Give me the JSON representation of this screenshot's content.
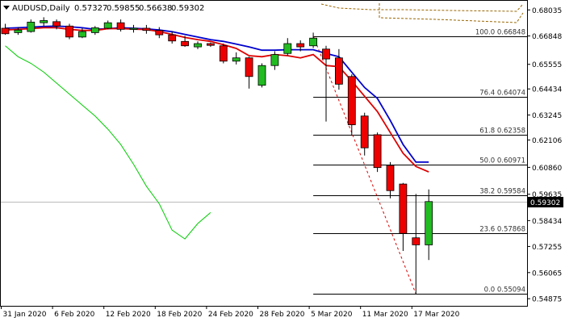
{
  "header": {
    "symbol_label": "AUDUSD,Daily",
    "ohlc_values": [
      "0.57327",
      "0.59855",
      "0.56638",
      "0.59302"
    ]
  },
  "colors": {
    "background": "#ffffff",
    "bull_candle": "#22bb22",
    "bear_candle": "#ee0000",
    "candle_outline": "#000000",
    "fast_ma": "#dd0000",
    "slow_ma": "#0000cc",
    "oscillator": "#00cc00",
    "fib_level": "#000000",
    "fib_trend": "#dd0000",
    "current_price_box": "#000000",
    "top_indicator": "#cc8800"
  },
  "chart_data": {
    "type": "candlestick",
    "symbol": "AUDUSD",
    "timeframe": "Daily",
    "y_axis_ticks": [
      "0.68035",
      "0.66848",
      "0.65555",
      "0.64434",
      "0.63245",
      "0.62106",
      "0.60860",
      "0.59635",
      "0.58434",
      "0.57255",
      "0.56065",
      "0.54875"
    ],
    "ylim": [
      0.5455,
      0.6845
    ],
    "current_price": "0.59302",
    "x_axis_labels": [
      "31 Jan 2020",
      "6 Feb 2020",
      "12 Feb 2020",
      "18 Feb 2020",
      "24 Feb 2020",
      "28 Feb 2020",
      "5 Mar 2020",
      "11 Mar 2020",
      "17 Mar 2020"
    ],
    "x_label_indexes": [
      0,
      4,
      8,
      12,
      16,
      20,
      24,
      28,
      32
    ],
    "candles": [
      {
        "o": 0.672,
        "h": 0.674,
        "l": 0.669,
        "c": 0.6695
      },
      {
        "o": 0.67,
        "h": 0.6725,
        "l": 0.669,
        "c": 0.6712
      },
      {
        "o": 0.6705,
        "h": 0.676,
        "l": 0.67,
        "c": 0.6748
      },
      {
        "o": 0.6745,
        "h": 0.677,
        "l": 0.673,
        "c": 0.6755
      },
      {
        "o": 0.675,
        "h": 0.676,
        "l": 0.6715,
        "c": 0.673
      },
      {
        "o": 0.673,
        "h": 0.674,
        "l": 0.667,
        "c": 0.668
      },
      {
        "o": 0.668,
        "h": 0.672,
        "l": 0.6675,
        "c": 0.6705
      },
      {
        "o": 0.67,
        "h": 0.673,
        "l": 0.669,
        "c": 0.6722
      },
      {
        "o": 0.672,
        "h": 0.6755,
        "l": 0.6715,
        "c": 0.6745
      },
      {
        "o": 0.6745,
        "h": 0.676,
        "l": 0.6705,
        "c": 0.6715
      },
      {
        "o": 0.6715,
        "h": 0.6735,
        "l": 0.67,
        "c": 0.672
      },
      {
        "o": 0.672,
        "h": 0.6735,
        "l": 0.6695,
        "c": 0.671
      },
      {
        "o": 0.671,
        "h": 0.6725,
        "l": 0.6675,
        "c": 0.669
      },
      {
        "o": 0.669,
        "h": 0.6705,
        "l": 0.665,
        "c": 0.6662
      },
      {
        "o": 0.666,
        "h": 0.6685,
        "l": 0.6635,
        "c": 0.664
      },
      {
        "o": 0.6635,
        "h": 0.666,
        "l": 0.6625,
        "c": 0.665
      },
      {
        "o": 0.665,
        "h": 0.6655,
        "l": 0.6635,
        "c": 0.6642
      },
      {
        "o": 0.664,
        "h": 0.665,
        "l": 0.656,
        "c": 0.657
      },
      {
        "o": 0.657,
        "h": 0.661,
        "l": 0.6555,
        "c": 0.6585
      },
      {
        "o": 0.6585,
        "h": 0.659,
        "l": 0.6445,
        "c": 0.65
      },
      {
        "o": 0.646,
        "h": 0.656,
        "l": 0.645,
        "c": 0.655
      },
      {
        "o": 0.655,
        "h": 0.6615,
        "l": 0.653,
        "c": 0.66
      },
      {
        "o": 0.6605,
        "h": 0.6675,
        "l": 0.6595,
        "c": 0.665
      },
      {
        "o": 0.665,
        "h": 0.6665,
        "l": 0.6615,
        "c": 0.6635
      },
      {
        "o": 0.664,
        "h": 0.67,
        "l": 0.663,
        "c": 0.6675
      },
      {
        "o": 0.6625,
        "h": 0.664,
        "l": 0.6295,
        "c": 0.658
      },
      {
        "o": 0.6585,
        "h": 0.6625,
        "l": 0.644,
        "c": 0.6465
      },
      {
        "o": 0.65,
        "h": 0.651,
        "l": 0.623,
        "c": 0.628
      },
      {
        "o": 0.632,
        "h": 0.6335,
        "l": 0.614,
        "c": 0.6175
      },
      {
        "o": 0.6235,
        "h": 0.6245,
        "l": 0.6065,
        "c": 0.6085
      },
      {
        "o": 0.6095,
        "h": 0.611,
        "l": 0.5945,
        "c": 0.598
      },
      {
        "o": 0.601,
        "h": 0.6015,
        "l": 0.5705,
        "c": 0.5785
      },
      {
        "o": 0.5765,
        "h": 0.5965,
        "l": 0.5509,
        "c": 0.5733
      },
      {
        "o": 0.57327,
        "h": 0.59855,
        "l": 0.56638,
        "c": 0.59302
      }
    ],
    "series": [
      {
        "type": "line",
        "color": "#0000cc",
        "values": [
          0.672,
          0.6722,
          0.6725,
          0.6728,
          0.673,
          0.6727,
          0.6722,
          0.6715,
          0.6718,
          0.6722,
          0.672,
          0.6717,
          0.6712,
          0.6704,
          0.6692,
          0.668,
          0.6668,
          0.666,
          0.6648,
          0.6635,
          0.662,
          0.662,
          0.6622,
          0.6622,
          0.6622,
          0.6605,
          0.659,
          0.652,
          0.645,
          0.64,
          0.63,
          0.619,
          0.611,
          0.611
        ]
      },
      {
        "type": "line",
        "color": "#dd0000",
        "values": [
          0.6712,
          0.6715,
          0.6718,
          0.6722,
          0.6722,
          0.6715,
          0.671,
          0.671,
          0.6718,
          0.6718,
          0.6716,
          0.6714,
          0.6705,
          0.6692,
          0.6678,
          0.6668,
          0.666,
          0.6645,
          0.6628,
          0.6595,
          0.659,
          0.66,
          0.6595,
          0.6585,
          0.66,
          0.655,
          0.6545,
          0.648,
          0.641,
          0.634,
          0.6245,
          0.615,
          0.609,
          0.6065
        ]
      },
      {
        "type": "line",
        "color": "#00cc00",
        "values": [
          0.664,
          0.659,
          0.656,
          0.652,
          0.647,
          0.642,
          0.637,
          0.632,
          0.626,
          0.619,
          0.61,
          0.6,
          0.592,
          0.58,
          0.576,
          0.583,
          0.588
        ]
      }
    ],
    "fibonacci": [
      {
        "label": "100.0 0.66848",
        "value": 0.66848
      },
      {
        "label": "76.4 0.64074",
        "value": 0.64074
      },
      {
        "label": "61.8 0.62358",
        "value": 0.62358
      },
      {
        "label": "50.0 0.60971",
        "value": 0.60971
      },
      {
        "label": "38.2 0.59584",
        "value": 0.59584
      },
      {
        "label": "23.6 0.57868",
        "value": 0.57868
      },
      {
        "label": "0.0 0.55094",
        "value": 0.55094
      }
    ],
    "fib_trend": {
      "from_index": 24,
      "from_value": 0.66848,
      "to_index": 32,
      "to_value": 0.55094
    },
    "grid": false
  }
}
